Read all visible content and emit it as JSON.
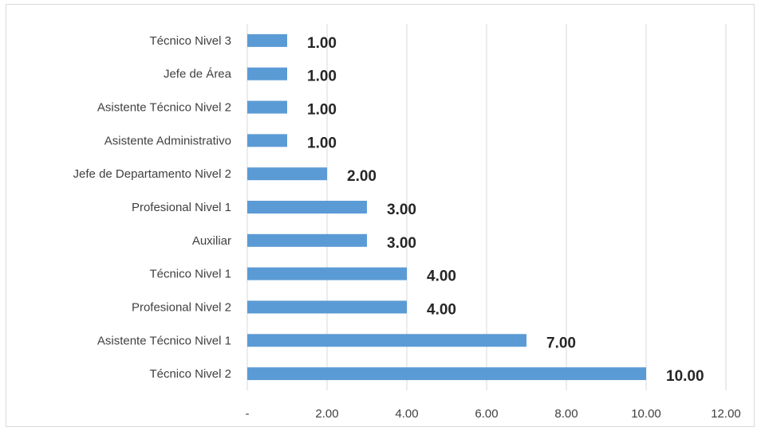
{
  "chart_data": {
    "type": "bar",
    "orientation": "horizontal",
    "categories": [
      "Técnico Nivel 3",
      "Jefe de Área",
      "Asistente Técnico Nivel 2",
      "Asistente Administrativo",
      "Jefe de Departamento Nivel 2",
      "Profesional Nivel 1",
      "Auxiliar",
      "Técnico Nivel 1",
      "Profesional Nivel 2",
      "Asistente Técnico Nivel 1",
      "Técnico Nivel 2"
    ],
    "values": [
      1,
      1,
      1,
      1,
      2,
      3,
      3,
      4,
      4,
      7,
      10
    ],
    "data_labels": [
      "1.00",
      "1.00",
      "1.00",
      "1.00",
      "2.00",
      "3.00",
      "3.00",
      "4.00",
      "4.00",
      "7.00",
      "10.00"
    ],
    "x_ticks": [
      0,
      2,
      4,
      6,
      8,
      10,
      12
    ],
    "x_tick_labels": [
      "-",
      "2.00",
      "4.00",
      "6.00",
      "8.00",
      "10.00",
      "12.00"
    ],
    "xlim": [
      0,
      12
    ],
    "grid": "vertical",
    "legend": "none",
    "bar_color": "#5b9bd5",
    "grid_color": "#d9d9d9"
  }
}
